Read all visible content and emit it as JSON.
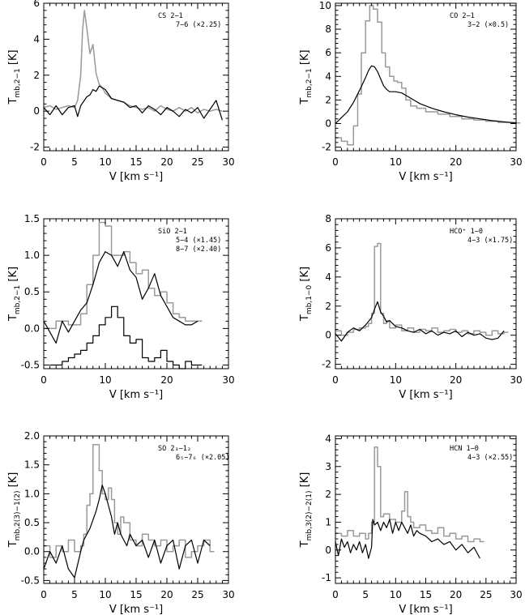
{
  "chart_data": [
    {
      "type": "line",
      "xlabel": "V [km s⁻¹]",
      "ylabel": "T mb,2−1 [K]",
      "xlim": [
        0,
        30
      ],
      "ylim": [
        -2.2,
        6
      ],
      "xticks": [
        0,
        5,
        10,
        15,
        20,
        25,
        30
      ],
      "yticks": [
        -2,
        0,
        2,
        4,
        6
      ],
      "legend": [
        {
          "text": "CS 2−1"
        },
        {
          "text": "7−6 (×2.25)"
        }
      ],
      "series": [
        {
          "color": "#999999",
          "step": false,
          "x": [
            0,
            1,
            2,
            3,
            4,
            5,
            5.5,
            6,
            6.3,
            6.6,
            7,
            7.5,
            8,
            8.5,
            9,
            9.5,
            10,
            11,
            12,
            13,
            14,
            15,
            16,
            17,
            18,
            19,
            20,
            21,
            22,
            23,
            24,
            25,
            26,
            27,
            28,
            29
          ],
          "y": [
            0.2,
            0.3,
            0.1,
            0.2,
            0.3,
            0.2,
            0.6,
            2.0,
            4.5,
            5.6,
            4.6,
            3.2,
            3.7,
            2.1,
            1.5,
            1.3,
            1.0,
            0.7,
            0.6,
            0.5,
            0.3,
            0.2,
            0.1,
            0.2,
            0,
            0.3,
            0.1,
            0,
            0.2,
            0,
            0.2,
            -0.1,
            0.1,
            0,
            0.1,
            0
          ]
        },
        {
          "color": "#000000",
          "step": false,
          "x": [
            0,
            1,
            2,
            3,
            4,
            5,
            5.5,
            6,
            7,
            7.5,
            8,
            8.5,
            9,
            10,
            11,
            12,
            13,
            14,
            15,
            16,
            17,
            18,
            19,
            20,
            21,
            22,
            23,
            24,
            25,
            26,
            27,
            28,
            29
          ],
          "y": [
            0.2,
            -0.2,
            0.3,
            -0.2,
            0.2,
            0.3,
            -0.3,
            0.3,
            0.8,
            0.9,
            1.2,
            1.1,
            1.4,
            1.2,
            0.7,
            0.6,
            0.5,
            0.2,
            0.3,
            -0.1,
            0.3,
            0.1,
            -0.2,
            0.2,
            0,
            -0.3,
            0.1,
            -0.1,
            0.2,
            -0.4,
            0.1,
            0.6,
            -0.5
          ]
        }
      ]
    },
    {
      "type": "line",
      "xlabel": "V [km s⁻¹]",
      "ylabel": "T mb,2−1 [K]",
      "xlim": [
        0,
        30
      ],
      "ylim": [
        -2.3,
        10.2
      ],
      "xticks": [
        0,
        10,
        20,
        30
      ],
      "yticks": [
        -2,
        0,
        2,
        4,
        6,
        8,
        10
      ],
      "legend": [
        {
          "text": "CO 2−1"
        },
        {
          "text": "3−2 (×0.5)"
        }
      ],
      "series": [
        {
          "color": "#999999",
          "step": true,
          "x": [
            0,
            1,
            2,
            3,
            3.7,
            4.3,
            5,
            5.7,
            6.3,
            7,
            7.7,
            8.3,
            9,
            9.7,
            10.3,
            11,
            11.7,
            12.5,
            13.5,
            15,
            17,
            19,
            21,
            23,
            25,
            27,
            29,
            30
          ],
          "y": [
            -1.2,
            -1.5,
            -1.8,
            -0.2,
            2.5,
            6.0,
            8.7,
            10.0,
            9.7,
            8.6,
            6.0,
            4.8,
            4.0,
            3.6,
            3.5,
            3.0,
            2.0,
            1.5,
            1.3,
            1.0,
            0.8,
            0.6,
            0.4,
            0.3,
            0.2,
            0.1,
            0.1,
            0.05
          ]
        },
        {
          "color": "#000000",
          "step": false,
          "x": [
            0,
            1,
            2,
            3,
            4,
            5,
            5.5,
            6,
            6.5,
            7,
            7.5,
            8,
            8.5,
            9,
            10,
            11,
            12,
            13,
            14,
            16,
            18,
            20,
            22,
            24,
            26,
            28,
            30
          ],
          "y": [
            0,
            0.5,
            1.0,
            1.8,
            2.8,
            3.9,
            4.5,
            4.9,
            4.8,
            4.4,
            3.8,
            3.2,
            2.9,
            2.7,
            2.7,
            2.6,
            2.3,
            2.0,
            1.7,
            1.3,
            1.0,
            0.75,
            0.55,
            0.4,
            0.25,
            0.15,
            0.05
          ]
        }
      ]
    },
    {
      "type": "line",
      "xlabel": "V [km s⁻¹]",
      "ylabel": "T mb,2−1 [K]",
      "xlim": [
        0,
        30
      ],
      "ylim": [
        -0.55,
        1.5
      ],
      "xticks": [
        0,
        10,
        20,
        30
      ],
      "yticks": [
        -0.5,
        0.0,
        0.5,
        1.0,
        1.5
      ],
      "legend": [
        {
          "text": "SiO 2−1"
        },
        {
          "text": "5−4 (×1.45)"
        },
        {
          "text": "8−7 (×2.40)"
        }
      ],
      "series": [
        {
          "color": "#999999",
          "step": true,
          "x": [
            0,
            2,
            4,
            6,
            7,
            8,
            9,
            10,
            11,
            12,
            13,
            14,
            15,
            16,
            17,
            18,
            19,
            20,
            21,
            22,
            23,
            24,
            25
          ],
          "y": [
            0.0,
            0.1,
            0.05,
            0.2,
            0.6,
            1.0,
            1.45,
            1.4,
            1.0,
            1.0,
            1.05,
            0.9,
            0.75,
            0.8,
            0.55,
            0.45,
            0.5,
            0.35,
            0.2,
            0.15,
            0.1,
            0.1,
            0.1
          ]
        },
        {
          "color": "#000000",
          "step": false,
          "x": [
            0,
            1,
            2,
            3,
            4,
            5,
            6,
            7,
            8,
            9,
            10,
            11,
            12,
            13,
            14,
            15,
            16,
            17,
            18,
            19,
            20,
            21,
            22,
            23,
            24,
            25
          ],
          "y": [
            0.1,
            -0.05,
            -0.2,
            0.1,
            -0.05,
            0.1,
            0.25,
            0.35,
            0.6,
            0.9,
            1.05,
            1.0,
            0.85,
            1.05,
            0.8,
            0.7,
            0.4,
            0.55,
            0.75,
            0.45,
            0.3,
            0.15,
            0.1,
            0.05,
            0.05,
            0.1
          ]
        },
        {
          "color": "#000000",
          "step": true,
          "x": [
            1,
            2,
            3,
            4,
            5,
            6,
            7,
            8,
            9,
            10,
            11,
            12,
            13,
            14,
            15,
            16,
            17,
            18,
            19,
            20,
            21,
            22,
            23,
            24,
            25
          ],
          "y": [
            -0.5,
            -0.5,
            -0.45,
            -0.4,
            -0.35,
            -0.3,
            -0.2,
            -0.1,
            0.05,
            0.15,
            0.3,
            0.15,
            -0.1,
            -0.2,
            -0.15,
            -0.4,
            -0.45,
            -0.4,
            -0.3,
            -0.45,
            -0.5,
            -0.55,
            -0.45,
            -0.5,
            -0.5
          ]
        }
      ]
    },
    {
      "type": "line",
      "xlabel": "V [km s⁻¹]",
      "ylabel": "T mb,1−0 [K]",
      "xlim": [
        0,
        30
      ],
      "ylim": [
        -2.3,
        8
      ],
      "xticks": [
        0,
        10,
        20,
        30
      ],
      "yticks": [
        -2,
        0,
        2,
        4,
        6,
        8
      ],
      "legend": [
        {
          "text": "HCO⁺ 1−0"
        },
        {
          "text": "4−3 (×1.75)"
        }
      ],
      "series": [
        {
          "color": "#999999",
          "step": true,
          "x": [
            0,
            1,
            2,
            3,
            4,
            5,
            5.5,
            6,
            6.5,
            7,
            7.5,
            8,
            8.5,
            9,
            10,
            11,
            12,
            13,
            14,
            15,
            16,
            17,
            18,
            19,
            20,
            21,
            22,
            23,
            24,
            25,
            26,
            27,
            28
          ],
          "y": [
            0.3,
            0,
            0.2,
            0.4,
            0.5,
            0.6,
            0.8,
            1.5,
            6.1,
            6.3,
            1.5,
            0.8,
            1.0,
            0.5,
            0.7,
            0.3,
            0.5,
            0.2,
            0.4,
            0.3,
            0.5,
            0.2,
            0.3,
            0.4,
            0.2,
            0.3,
            0.1,
            0.3,
            0.2,
            0,
            0.3,
            0.1,
            0.2
          ]
        },
        {
          "color": "#000000",
          "step": false,
          "x": [
            0,
            1,
            2,
            3,
            4,
            5,
            6,
            6.5,
            7,
            7.5,
            8,
            8.5,
            9,
            10,
            11,
            12,
            13,
            14,
            15,
            16,
            17,
            18,
            19,
            20,
            21,
            22,
            23,
            24,
            25,
            26,
            27,
            28
          ],
          "y": [
            0.1,
            -0.4,
            0.2,
            0.5,
            0.3,
            0.7,
            1.2,
            1.8,
            2.3,
            1.6,
            1.3,
            0.9,
            1.0,
            0.6,
            0.5,
            0.3,
            0.2,
            0.4,
            0.1,
            0.3,
            0,
            0.2,
            0.1,
            0.3,
            -0.1,
            0.2,
            0,
            0.1,
            -0.2,
            -0.3,
            -0.2,
            0.3
          ]
        }
      ]
    },
    {
      "type": "line",
      "xlabel": "V [km s⁻¹]",
      "ylabel": "T mb,2(3)−1(2) [K]",
      "xlim": [
        0,
        30
      ],
      "ylim": [
        -0.55,
        2.0
      ],
      "xticks": [
        0,
        5,
        10,
        15,
        20,
        25,
        30
      ],
      "yticks": [
        -0.5,
        0.0,
        0.5,
        1.0,
        1.5,
        2.0
      ],
      "legend": [
        {
          "text": "SO 2₃−1₂"
        },
        {
          "text": "6₅−7₆ (×2.05)"
        }
      ],
      "series": [
        {
          "color": "#999999",
          "step": true,
          "x": [
            0,
            1,
            2,
            3,
            4,
            5,
            6,
            6.5,
            7,
            7.5,
            8,
            8.5,
            9,
            9.5,
            10,
            10.5,
            11,
            11.5,
            12,
            12.5,
            13,
            14,
            15,
            16,
            17,
            18,
            19,
            20,
            21,
            22,
            23,
            24,
            25,
            26,
            27
          ],
          "y": [
            0.1,
            -0.1,
            0.1,
            0,
            0.2,
            0,
            0.1,
            0.3,
            0.8,
            1.0,
            1.85,
            1.85,
            1.4,
            1.0,
            0.9,
            1.1,
            0.9,
            0.5,
            0.3,
            0.6,
            0.5,
            0.2,
            0.1,
            0.3,
            0.2,
            0.1,
            0.2,
            0,
            0.1,
            0.2,
            -0.1,
            0,
            0.1,
            0.2,
            0
          ]
        },
        {
          "color": "#000000",
          "step": false,
          "x": [
            0,
            1,
            2,
            3,
            4,
            5,
            6,
            6.5,
            7,
            7.5,
            8,
            8.5,
            9,
            9.5,
            10,
            10.5,
            11,
            11.5,
            12,
            12.5,
            13,
            13.5,
            14,
            15,
            16,
            17,
            18,
            19,
            20,
            21,
            22,
            23,
            24,
            25,
            26,
            27
          ],
          "y": [
            -0.3,
            0.0,
            -0.2,
            0.1,
            -0.3,
            -0.45,
            0.0,
            0.2,
            0.3,
            0.4,
            0.55,
            0.7,
            0.9,
            1.15,
            1.0,
            0.8,
            0.6,
            0.3,
            0.5,
            0.3,
            0.2,
            0.1,
            0.3,
            0.1,
            0.2,
            -0.1,
            0.2,
            -0.2,
            0.1,
            0.2,
            -0.3,
            0.1,
            0.2,
            -0.2,
            0.2,
            0.1
          ]
        }
      ]
    },
    {
      "type": "line",
      "xlabel": "V [km s⁻¹]",
      "ylabel": "T mb,3(2)−2(1) [K]",
      "xlim": [
        0,
        30
      ],
      "ylim": [
        -1.2,
        4.1
      ],
      "xticks": [
        0,
        5,
        10,
        15,
        20,
        25,
        30
      ],
      "yticks": [
        -1,
        0,
        1,
        2,
        3,
        4
      ],
      "legend": [
        {
          "text": "HCN 1−0"
        },
        {
          "text": "4−3 (×2.55)"
        }
      ],
      "series": [
        {
          "color": "#999999",
          "step": true,
          "x": [
            0,
            1,
            2,
            3,
            4,
            5,
            5.5,
            6,
            6.5,
            7,
            7.5,
            8,
            9,
            10,
            11,
            11.5,
            12,
            12.5,
            13,
            14,
            15,
            16,
            17,
            18,
            19,
            20,
            21,
            22,
            23,
            24
          ],
          "y": [
            0.6,
            0.5,
            0.7,
            0.5,
            0.6,
            0.4,
            0.6,
            1.0,
            3.7,
            3.0,
            1.2,
            1.3,
            1.1,
            1.0,
            1.4,
            2.1,
            1.2,
            1.0,
            0.8,
            0.9,
            0.7,
            0.6,
            0.8,
            0.5,
            0.6,
            0.4,
            0.5,
            0.3,
            0.4,
            0.3
          ]
        },
        {
          "color": "#000000",
          "step": false,
          "x": [
            0,
            0.5,
            1,
            1.5,
            2,
            2.5,
            3,
            3.5,
            4,
            4.5,
            5,
            5.5,
            6,
            6.2,
            6.5,
            7,
            7.5,
            8,
            8.5,
            9,
            9.5,
            10,
            10.5,
            11,
            11.5,
            12,
            12.5,
            13,
            13.5,
            14,
            15,
            16,
            17,
            18,
            19,
            20,
            21,
            22,
            23,
            24
          ],
          "y": [
            0.3,
            -0.2,
            0.4,
            0.1,
            0.3,
            -0.1,
            0.2,
            0.0,
            0.3,
            -0.1,
            0.2,
            -0.3,
            0.1,
            1.1,
            0.9,
            1.0,
            0.7,
            1.0,
            0.8,
            1.1,
            0.6,
            1.0,
            0.7,
            1.0,
            0.8,
            0.6,
            0.9,
            0.5,
            0.7,
            0.6,
            0.5,
            0.3,
            0.4,
            0.2,
            0.3,
            0,
            0.2,
            -0.1,
            0.1,
            -0.3
          ]
        }
      ]
    }
  ]
}
